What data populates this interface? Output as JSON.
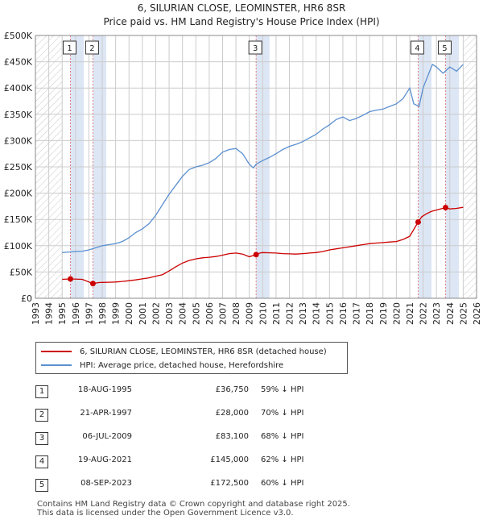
{
  "title_line1": "6, SILURIAN CLOSE, LEOMINSTER, HR6 8SR",
  "title_line2": "Price paid vs. HM Land Registry's House Price Index (HPI)",
  "legend": {
    "red_label": "6, SILURIAN CLOSE, LEOMINSTER, HR6 8SR (detached house)",
    "blue_label": "HPI: Average price, detached house, Herefordshire"
  },
  "sales": [
    {
      "num": "1",
      "date": "18-AUG-1995",
      "price": "£36,750",
      "hpi": "59% ↓ HPI"
    },
    {
      "num": "2",
      "date": "21-APR-1997",
      "price": "£28,000",
      "hpi": "70% ↓ HPI"
    },
    {
      "num": "3",
      "date": "06-JUL-2009",
      "price": "£83,100",
      "hpi": "68% ↓ HPI"
    },
    {
      "num": "4",
      "date": "19-AUG-2021",
      "price": "£145,000",
      "hpi": "62% ↓ HPI"
    },
    {
      "num": "5",
      "date": "08-SEP-2023",
      "price": "£172,500",
      "hpi": "60% ↓ HPI"
    }
  ],
  "footer_line1": "Contains HM Land Registry data © Crown copyright and database right 2025.",
  "footer_line2": "This data is licensed under the Open Government Licence v3.0.",
  "colors": {
    "red": "#cc0000",
    "blue": "#5b8fd0",
    "band": "#dde6f4",
    "grid": "#cccccc",
    "vline": "#e08080"
  },
  "chart_data": {
    "type": "line",
    "xlim": [
      1993,
      2026
    ],
    "ylim": [
      0,
      500000
    ],
    "x_ticks": [
      1993,
      1994,
      1995,
      1996,
      1997,
      1998,
      1999,
      2000,
      2001,
      2002,
      2003,
      2004,
      2005,
      2006,
      2007,
      2008,
      2009,
      2010,
      2011,
      2012,
      2013,
      2014,
      2015,
      2016,
      2017,
      2018,
      2019,
      2020,
      2021,
      2022,
      2023,
      2024,
      2025,
      2026
    ],
    "y_ticks": [
      0,
      50000,
      100000,
      150000,
      200000,
      250000,
      300000,
      350000,
      400000,
      450000,
      500000
    ],
    "y_tick_labels": [
      "£0",
      "£50K",
      "£100K",
      "£150K",
      "£200K",
      "£250K",
      "£300K",
      "£350K",
      "£400K",
      "£450K",
      "£500K"
    ],
    "hatched_before": 1995.0,
    "hatched_after": 2025.0,
    "series": [
      {
        "name": "6, SILURIAN CLOSE, LEOMINSTER, HR6 8SR (detached house)",
        "color": "#cc0000",
        "x": [
          1995.0,
          1995.62,
          1996.5,
          1997.3,
          1997.8,
          1998.5,
          1999.0,
          1999.5,
          2000.0,
          2000.5,
          2001.0,
          2001.5,
          2002.0,
          2002.5,
          2003.0,
          2003.5,
          2004.0,
          2004.5,
          2005.0,
          2005.5,
          2006.0,
          2006.5,
          2007.0,
          2007.5,
          2008.0,
          2008.5,
          2009.0,
          2009.51,
          2009.8,
          2010.0,
          2010.5,
          2011.0,
          2011.5,
          2012.0,
          2012.5,
          2013.0,
          2013.5,
          2014.0,
          2014.5,
          2015.0,
          2015.5,
          2016.0,
          2016.5,
          2017.0,
          2017.5,
          2018.0,
          2018.5,
          2019.0,
          2019.5,
          2020.0,
          2020.5,
          2021.0,
          2021.63,
          2021.9,
          2022.2,
          2022.6,
          2023.0,
          2023.68,
          2024.0,
          2024.5,
          2025.0
        ],
        "y": [
          36000,
          36750,
          36000,
          28000,
          30000,
          30500,
          31000,
          32000,
          33500,
          35000,
          37000,
          39000,
          42000,
          45000,
          52000,
          60000,
          67000,
          72000,
          75000,
          77000,
          78000,
          79500,
          82000,
          85000,
          86000,
          84000,
          79000,
          83100,
          86000,
          87000,
          86500,
          86000,
          85000,
          84500,
          84000,
          85000,
          86000,
          87000,
          89000,
          92000,
          94000,
          96000,
          98000,
          100000,
          102000,
          104000,
          105000,
          106000,
          107000,
          108000,
          112000,
          118000,
          145000,
          155000,
          160000,
          165000,
          168000,
          172500,
          170000,
          171000,
          173000
        ]
      },
      {
        "name": "HPI: Average price, detached house, Herefordshire",
        "color": "#5b8fd0",
        "x": [
          1995.0,
          1995.5,
          1996.0,
          1996.5,
          1997.0,
          1997.5,
          1998.0,
          1998.5,
          1999.0,
          1999.5,
          2000.0,
          2000.5,
          2001.0,
          2001.5,
          2002.0,
          2002.5,
          2003.0,
          2003.5,
          2004.0,
          2004.5,
          2005.0,
          2005.5,
          2006.0,
          2006.5,
          2007.0,
          2007.5,
          2008.0,
          2008.5,
          2009.0,
          2009.3,
          2009.5,
          2010.0,
          2010.5,
          2011.0,
          2011.5,
          2012.0,
          2012.5,
          2013.0,
          2013.5,
          2014.0,
          2014.5,
          2015.0,
          2015.5,
          2016.0,
          2016.5,
          2017.0,
          2017.5,
          2018.0,
          2018.5,
          2019.0,
          2019.5,
          2020.0,
          2020.5,
          2021.0,
          2021.3,
          2021.7,
          2022.0,
          2022.3,
          2022.7,
          2023.0,
          2023.5,
          2024.0,
          2024.5,
          2025.0
        ],
        "y": [
          87000,
          88000,
          89000,
          89500,
          92000,
          96000,
          100000,
          102000,
          104000,
          108000,
          115000,
          125000,
          132000,
          142000,
          158000,
          178000,
          198000,
          215000,
          232000,
          245000,
          250000,
          253000,
          258000,
          266000,
          278000,
          283000,
          285000,
          275000,
          255000,
          248000,
          255000,
          262000,
          268000,
          275000,
          283000,
          289000,
          293000,
          298000,
          305000,
          312000,
          322000,
          330000,
          340000,
          345000,
          338000,
          342000,
          348000,
          355000,
          358000,
          360000,
          365000,
          370000,
          380000,
          400000,
          370000,
          365000,
          400000,
          420000,
          445000,
          440000,
          428000,
          440000,
          432000,
          445000
        ]
      }
    ],
    "markers": [
      {
        "label": "1",
        "x": 1995.62,
        "y": 36750
      },
      {
        "label": "2",
        "x": 1997.3,
        "y": 28000
      },
      {
        "label": "3",
        "x": 2009.51,
        "y": 83100
      },
      {
        "label": "4",
        "x": 2021.63,
        "y": 145000
      },
      {
        "label": "5",
        "x": 2023.68,
        "y": 172500
      }
    ]
  }
}
